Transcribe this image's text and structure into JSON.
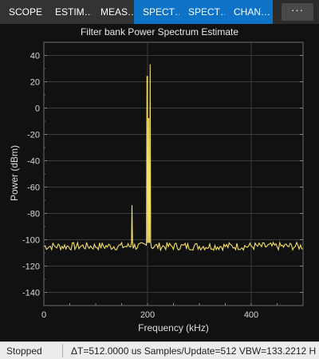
{
  "tabs": [
    {
      "label": "SCOPE",
      "active": false
    },
    {
      "label": "ESTIM…",
      "active": false
    },
    {
      "label": "MEAS…",
      "active": false
    },
    {
      "label": "SPECT…",
      "active": true
    },
    {
      "label": "SPECT…",
      "active": true
    },
    {
      "label": "CHAN…",
      "active": true
    }
  ],
  "more_button": "···",
  "colors": {
    "trace": "#f3de6a",
    "accent": "#0e72c7",
    "background": "#111111",
    "grid": "#3c3c3c"
  },
  "chart_data": {
    "type": "line",
    "title": "Filter bank Power Spectrum Estimate",
    "xlabel": "Frequency (kHz)",
    "ylabel": "Power (dBm)",
    "xlim": [
      0,
      500
    ],
    "ylim": [
      -150,
      50
    ],
    "xticks": [
      0,
      200,
      400
    ],
    "yticks": [
      40,
      20,
      0,
      -20,
      -40,
      -60,
      -80,
      -100,
      -120,
      -140
    ],
    "grid": true,
    "series": [
      {
        "color": "#f3de6a",
        "noise_floor": -105,
        "peaks": [
          {
            "x": 170,
            "y": -74
          },
          {
            "x": 199,
            "y": 24
          },
          {
            "x": 202,
            "y": -8
          },
          {
            "x": 205,
            "y": 33
          }
        ]
      }
    ]
  },
  "status": {
    "state": "Stopped",
    "info": "ΔT=512.0000 us  Samples/Update=512  VBW=133.2212 H"
  }
}
